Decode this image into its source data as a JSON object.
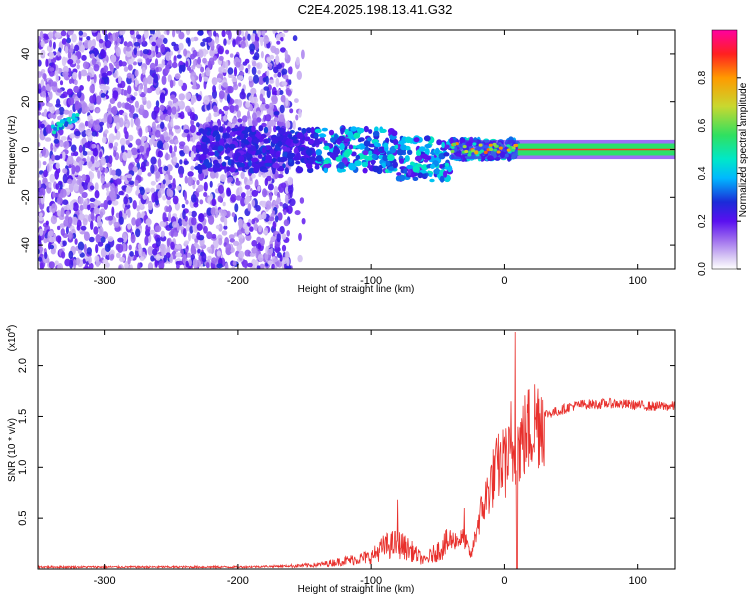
{
  "title": "C2E4.2025.198.13.41.G32",
  "colors": {
    "snr_line": "#e8302c",
    "colormap": [
      "#ffffff",
      "#d8c8f4",
      "#a070ee",
      "#6a10f0",
      "#1b2bd8",
      "#00b8ff",
      "#00e8c8",
      "#30e060",
      "#c8d830",
      "#ff9a00",
      "#ff2020",
      "#ff00b0"
    ],
    "axes": "#000000"
  },
  "chart_data": [
    {
      "type": "heatmap",
      "xlabel": "Height of straight line (km)",
      "ylabel": "Frequency (Hz)",
      "xlim": [
        -350,
        128
      ],
      "ylim": [
        -50,
        50
      ],
      "xticks": [
        -300,
        -200,
        -100,
        0,
        100
      ],
      "yticks": [
        -40,
        -20,
        0,
        20,
        40
      ],
      "colorbar": {
        "label": "Normalized spectral amplitude",
        "range": [
          0.0,
          1.0
        ],
        "ticks": [
          0.0,
          0.2,
          0.4,
          0.6,
          0.8
        ],
        "tick_labels": [
          "0.0",
          "0.2",
          "0.4",
          "0.6",
          "0.8"
        ]
      },
      "description_points": {
        "noise_region_x": [
          -350,
          -160
        ],
        "carrier_emerges_x": -40,
        "carrier_frequency_hz": 0,
        "strong_carrier_x": [
          10,
          128
        ]
      }
    },
    {
      "type": "line",
      "xlabel": "Height of straight line (km)",
      "ylabel": "SNR (10 * v/v)",
      "y_multiplier": "(x10",
      "y_multiplier_exp": "4",
      "y_multiplier_close": ")",
      "xlim": [
        -350,
        128
      ],
      "ylim": [
        0,
        2.35
      ],
      "xticks": [
        -300,
        -200,
        -100,
        0,
        100
      ],
      "yticks": [
        0.5,
        1.0,
        1.5,
        2.0
      ],
      "ytick_labels": [
        "0.5",
        "1.0",
        "1.5",
        "2.0"
      ],
      "series": [
        {
          "x": [
            -350,
            -300,
            -250,
            -200,
            -160,
            -140,
            -120,
            -100,
            -90,
            -80,
            -70,
            -60,
            -50,
            -40,
            -30,
            -25,
            -20,
            -15,
            -10,
            -5,
            0,
            5,
            8,
            10,
            15,
            20,
            25,
            30,
            40,
            50,
            60,
            70,
            80,
            90,
            100,
            110,
            120,
            128
          ],
          "values": [
            0.02,
            0.02,
            0.02,
            0.02,
            0.03,
            0.04,
            0.08,
            0.12,
            0.22,
            0.25,
            0.18,
            0.08,
            0.18,
            0.28,
            0.3,
            0.12,
            0.45,
            0.65,
            0.85,
            1.0,
            1.05,
            1.1,
            1.15,
            1.2,
            1.3,
            1.4,
            1.48,
            1.52,
            1.55,
            1.6,
            1.62,
            1.62,
            1.63,
            1.62,
            1.61,
            1.6,
            1.6,
            1.6
          ]
        }
      ],
      "spikes": [
        {
          "x": -80,
          "value": 0.68
        },
        {
          "x": -30,
          "value": 0.6
        },
        {
          "x": 8,
          "value": 2.33
        },
        {
          "x": 5,
          "value": 1.65
        },
        {
          "x": 0,
          "value": 1.3
        }
      ]
    }
  ]
}
